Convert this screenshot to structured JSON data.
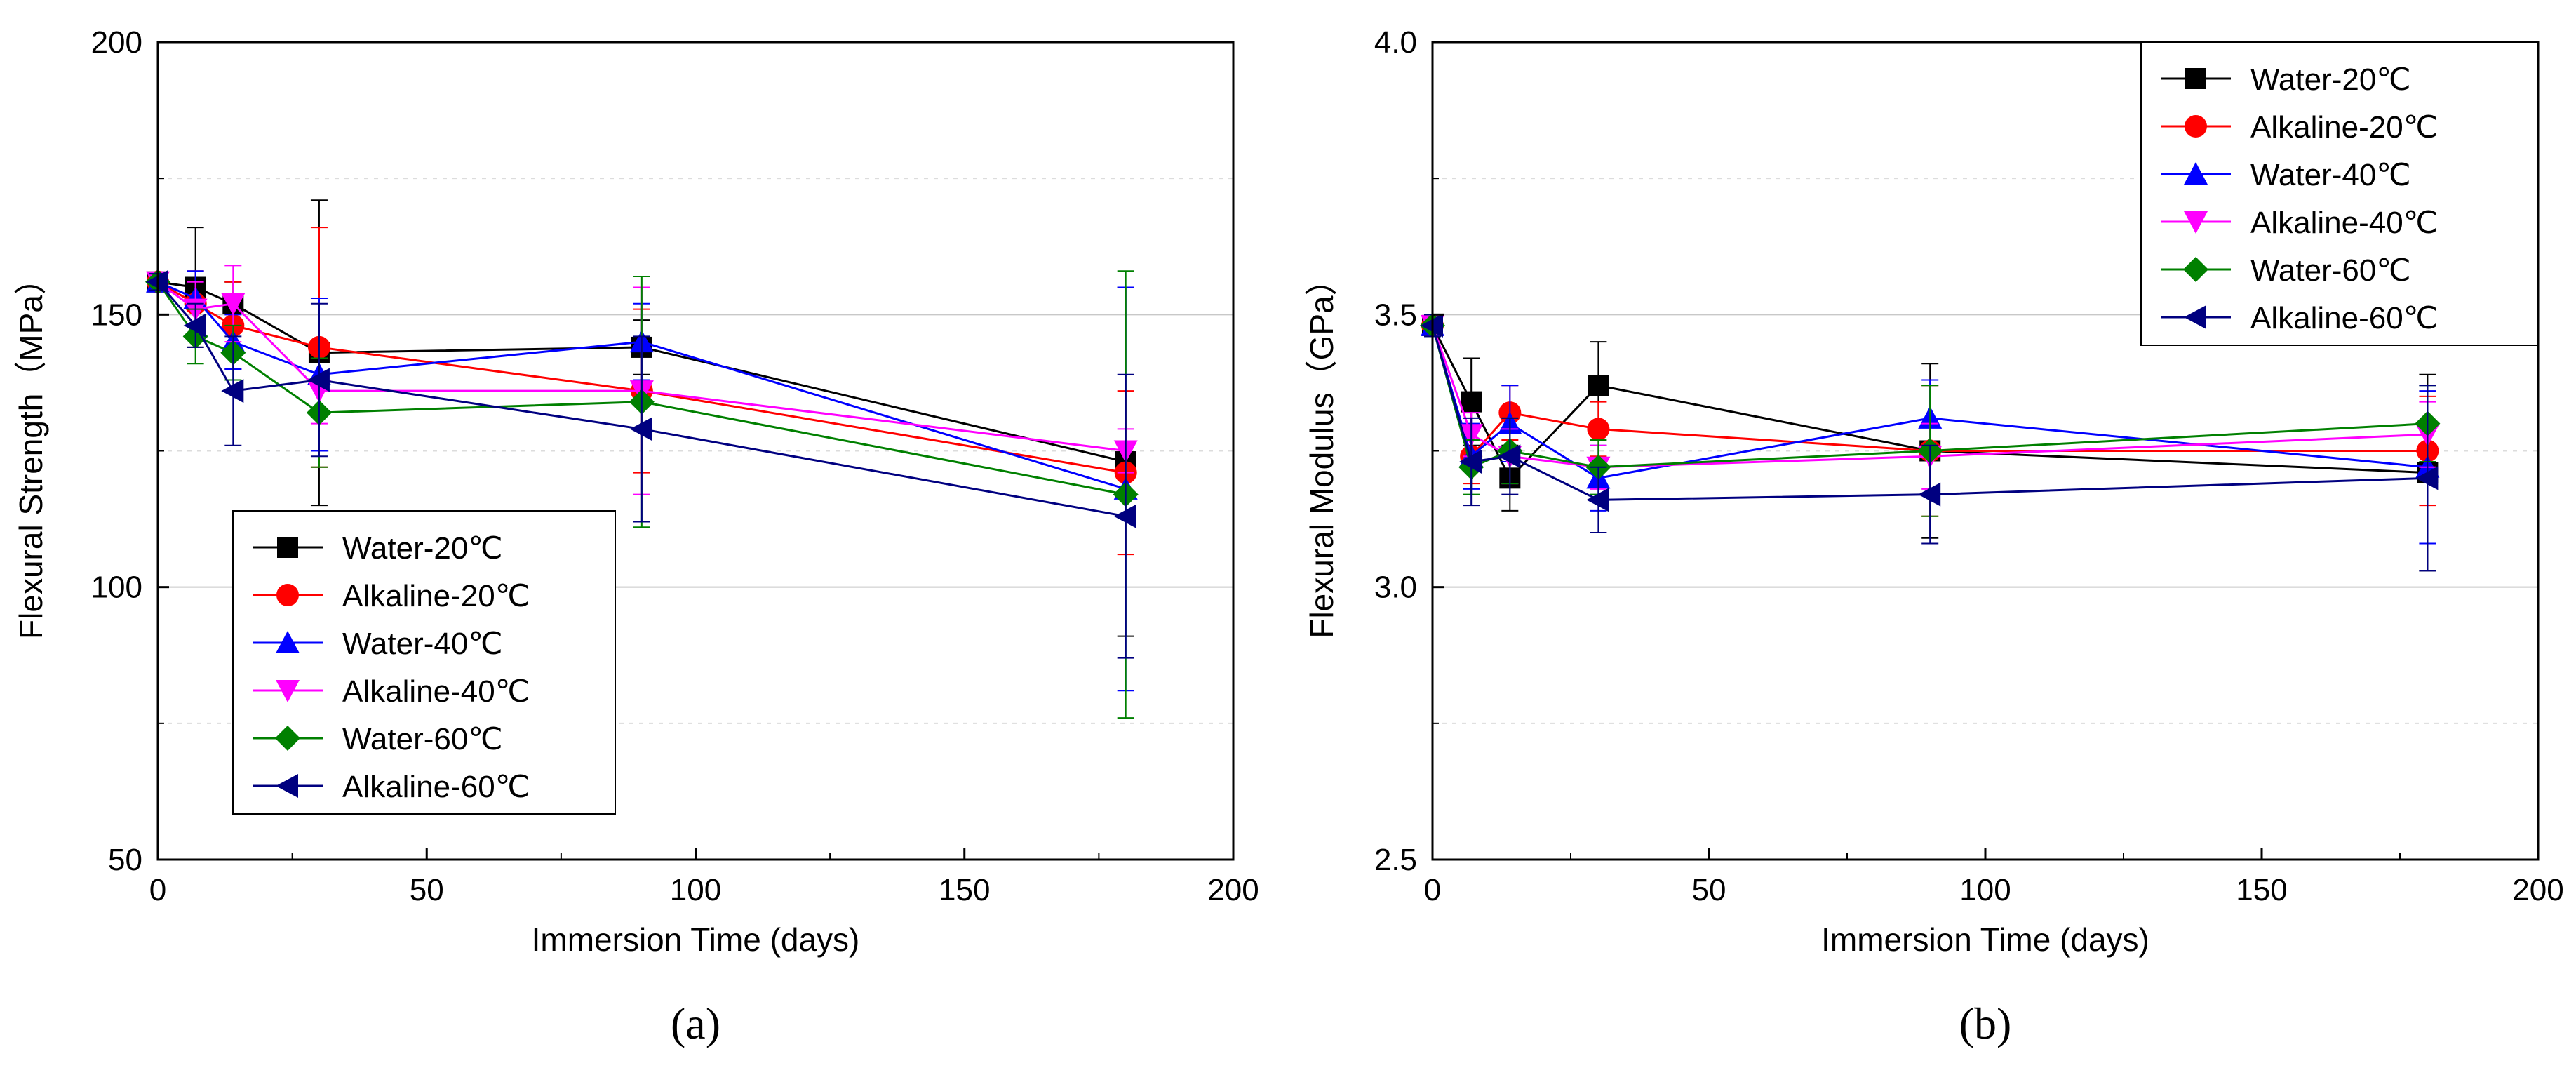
{
  "chart_data": [
    {
      "type": "line",
      "panel_label": "(a)",
      "xlabel": "Immersion Time (days)",
      "ylabel": "Flexural Strength（MPa）",
      "xlim": [
        0,
        200
      ],
      "ylim": [
        50,
        200
      ],
      "xticks": [
        0,
        50,
        100,
        150,
        200
      ],
      "yticks": [
        50,
        100,
        150,
        200
      ],
      "gridlines": [
        75,
        100,
        125,
        150,
        175
      ],
      "legend_position": "lower-left",
      "series": [
        {
          "name": "Water-20℃",
          "color": "#000000",
          "marker": "square",
          "x": [
            0,
            7,
            14,
            30,
            90,
            180
          ],
          "y": [
            156,
            155,
            152,
            143,
            144,
            123
          ],
          "err": [
            1.5,
            11,
            4,
            28,
            5,
            32
          ]
        },
        {
          "name": "Alkaline-20℃",
          "color": "#ff0000",
          "marker": "circle",
          "x": [
            0,
            7,
            14,
            30,
            90,
            180
          ],
          "y": [
            156,
            152,
            148,
            144,
            136,
            121
          ],
          "err": [
            1.5,
            6,
            8,
            22,
            15,
            15
          ]
        },
        {
          "name": "Water-40℃",
          "color": "#0000ff",
          "marker": "triangle-up",
          "x": [
            0,
            7,
            14,
            30,
            90,
            180
          ],
          "y": [
            156,
            153,
            145,
            139,
            145,
            118
          ],
          "err": [
            1.5,
            5,
            5,
            14,
            7,
            37
          ]
        },
        {
          "name": "Alkaline-40℃",
          "color": "#ff00ff",
          "marker": "triangle-down",
          "x": [
            0,
            7,
            14,
            30,
            90,
            180
          ],
          "y": [
            156,
            151,
            152,
            136,
            136,
            125
          ],
          "err": [
            1.5,
            5,
            7,
            6,
            19,
            4
          ]
        },
        {
          "name": "Water-60℃",
          "color": "#008000",
          "marker": "diamond",
          "x": [
            0,
            7,
            14,
            30,
            90,
            180
          ],
          "y": [
            156,
            146,
            143,
            132,
            134,
            117
          ],
          "err": [
            1.5,
            5,
            5,
            10,
            23,
            41
          ]
        },
        {
          "name": "Alkaline-60℃",
          "color": "#000080",
          "marker": "triangle-left",
          "x": [
            0,
            7,
            14,
            30,
            90,
            180
          ],
          "y": [
            156,
            148,
            136,
            138,
            129,
            113
          ],
          "err": [
            1.5,
            4,
            10,
            14,
            17,
            26
          ]
        }
      ]
    },
    {
      "type": "line",
      "panel_label": "(b)",
      "xlabel": "Immersion Time (days)",
      "ylabel": "Flexural Modulus（GPa）",
      "xlim": [
        0,
        200
      ],
      "ylim": [
        2.5,
        4.0
      ],
      "xticks": [
        0,
        50,
        100,
        150,
        200
      ],
      "yticks": [
        2.5,
        3.0,
        3.5,
        4.0
      ],
      "gridlines": [
        2.75,
        3.0,
        3.25,
        3.5,
        3.75
      ],
      "legend_position": "top-right",
      "series": [
        {
          "name": "Water-20℃",
          "color": "#000000",
          "marker": "square",
          "x": [
            0,
            7,
            14,
            30,
            90,
            180
          ],
          "y": [
            3.48,
            3.34,
            3.2,
            3.37,
            3.25,
            3.21
          ],
          "err": [
            0.02,
            0.08,
            0.06,
            0.08,
            0.16,
            0.18
          ]
        },
        {
          "name": "Alkaline-20℃",
          "color": "#ff0000",
          "marker": "circle",
          "x": [
            0,
            7,
            14,
            30,
            90,
            180
          ],
          "y": [
            3.48,
            3.24,
            3.32,
            3.29,
            3.25,
            3.25
          ],
          "err": [
            0.02,
            0.05,
            0.05,
            0.05,
            0.12,
            0.1
          ]
        },
        {
          "name": "Water-40℃",
          "color": "#0000ff",
          "marker": "triangle-up",
          "x": [
            0,
            7,
            14,
            30,
            90,
            180
          ],
          "y": [
            3.48,
            3.24,
            3.3,
            3.2,
            3.31,
            3.22
          ],
          "err": [
            0.02,
            0.06,
            0.07,
            0.06,
            0.07,
            0.14
          ]
        },
        {
          "name": "Alkaline-40℃",
          "color": "#ff00ff",
          "marker": "triangle-down",
          "x": [
            0,
            7,
            14,
            30,
            90,
            180
          ],
          "y": [
            3.48,
            3.28,
            3.24,
            3.22,
            3.24,
            3.28
          ],
          "err": [
            0.02,
            0.04,
            0.05,
            0.04,
            0.06,
            0.06
          ]
        },
        {
          "name": "Water-60℃",
          "color": "#008000",
          "marker": "diamond",
          "x": [
            0,
            7,
            14,
            30,
            90,
            180
          ],
          "y": [
            3.48,
            3.22,
            3.25,
            3.22,
            3.25,
            3.3
          ],
          "err": [
            0.02,
            0.05,
            0.06,
            0.05,
            0.12,
            0.07
          ]
        },
        {
          "name": "Alkaline-60℃",
          "color": "#000080",
          "marker": "triangle-left",
          "x": [
            0,
            7,
            14,
            30,
            90,
            180
          ],
          "y": [
            3.48,
            3.23,
            3.24,
            3.16,
            3.17,
            3.2
          ],
          "err": [
            0.02,
            0.08,
            0.07,
            0.06,
            0.09,
            0.17
          ]
        }
      ]
    }
  ]
}
